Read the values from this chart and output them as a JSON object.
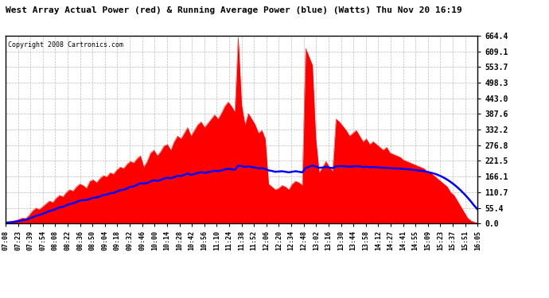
{
  "title": "West Array Actual Power (red) & Running Average Power (blue) (Watts) Thu Nov 20 16:19",
  "copyright": "Copyright 2008 Cartronics.com",
  "yticks": [
    0.0,
    55.4,
    110.7,
    166.1,
    221.5,
    276.8,
    332.2,
    387.6,
    443.0,
    498.3,
    553.7,
    609.1,
    664.4
  ],
  "ymax": 664.4,
  "ymin": 0.0,
  "background_color": "#ffffff",
  "plot_bg_color": "#ffffff",
  "grid_color": "#aaaaaa",
  "red_color": "#ff0000",
  "blue_color": "#0000ff",
  "title_color": "#000000",
  "x_labels": [
    "07:08",
    "07:23",
    "07:39",
    "07:54",
    "08:08",
    "08:22",
    "08:36",
    "08:50",
    "09:04",
    "09:18",
    "09:32",
    "09:46",
    "10:00",
    "10:14",
    "10:28",
    "10:42",
    "10:56",
    "11:10",
    "11:24",
    "11:38",
    "11:52",
    "12:06",
    "12:20",
    "12:34",
    "12:48",
    "13:02",
    "13:16",
    "13:30",
    "13:44",
    "13:58",
    "14:12",
    "14:27",
    "14:41",
    "14:55",
    "15:09",
    "15:23",
    "15:37",
    "15:51",
    "16:05"
  ],
  "actual_power": [
    3,
    5,
    8,
    10,
    15,
    20,
    18,
    30,
    45,
    55,
    50,
    60,
    70,
    80,
    75,
    90,
    100,
    95,
    110,
    120,
    115,
    130,
    140,
    135,
    125,
    150,
    155,
    145,
    160,
    170,
    165,
    180,
    175,
    190,
    200,
    195,
    210,
    220,
    215,
    230,
    240,
    200,
    220,
    250,
    260,
    240,
    255,
    275,
    280,
    260,
    290,
    310,
    300,
    320,
    340,
    310,
    330,
    350,
    360,
    340,
    355,
    370,
    385,
    370,
    390,
    415,
    430,
    415,
    395,
    660,
    420,
    350,
    390,
    370,
    350,
    320,
    330,
    300,
    140,
    130,
    120,
    125,
    135,
    130,
    120,
    140,
    150,
    145,
    135,
    620,
    590,
    560,
    300,
    180,
    200,
    220,
    200,
    185,
    370,
    360,
    345,
    330,
    310,
    320,
    330,
    310,
    290,
    300,
    280,
    290,
    280,
    270,
    260,
    270,
    250,
    245,
    240,
    235,
    225,
    220,
    215,
    210,
    205,
    200,
    195,
    185,
    180,
    170,
    160,
    150,
    140,
    130,
    110,
    100,
    80,
    60,
    40,
    20,
    10,
    5,
    2
  ],
  "running_avg": [
    3,
    4,
    5,
    7,
    9,
    12,
    13,
    17,
    22,
    27,
    30,
    34,
    39,
    44,
    47,
    52,
    57,
    59,
    64,
    69,
    71,
    76,
    81,
    83,
    83,
    87,
    91,
    92,
    96,
    101,
    102,
    107,
    108,
    113,
    118,
    119,
    124,
    130,
    131,
    137,
    143,
    141,
    143,
    149,
    153,
    151,
    154,
    159,
    162,
    160,
    164,
    169,
    168,
    172,
    177,
    172,
    175,
    179,
    182,
    179,
    181,
    184,
    187,
    185,
    188,
    191,
    194,
    192,
    190,
    205,
    203,
    200,
    202,
    200,
    198,
    195,
    196,
    193,
    188,
    186,
    183,
    184,
    185,
    183,
    181,
    183,
    185,
    183,
    181,
    196,
    201,
    205,
    202,
    197,
    198,
    200,
    198,
    196,
    202,
    203,
    203,
    202,
    201,
    202,
    203,
    202,
    200,
    201,
    199,
    200,
    199,
    198,
    197,
    197,
    196,
    195,
    195,
    194,
    193,
    192,
    191,
    190,
    188,
    187,
    185,
    183,
    180,
    177,
    173,
    168,
    162,
    155,
    147,
    138,
    128,
    117,
    105,
    92,
    78,
    63,
    50
  ]
}
